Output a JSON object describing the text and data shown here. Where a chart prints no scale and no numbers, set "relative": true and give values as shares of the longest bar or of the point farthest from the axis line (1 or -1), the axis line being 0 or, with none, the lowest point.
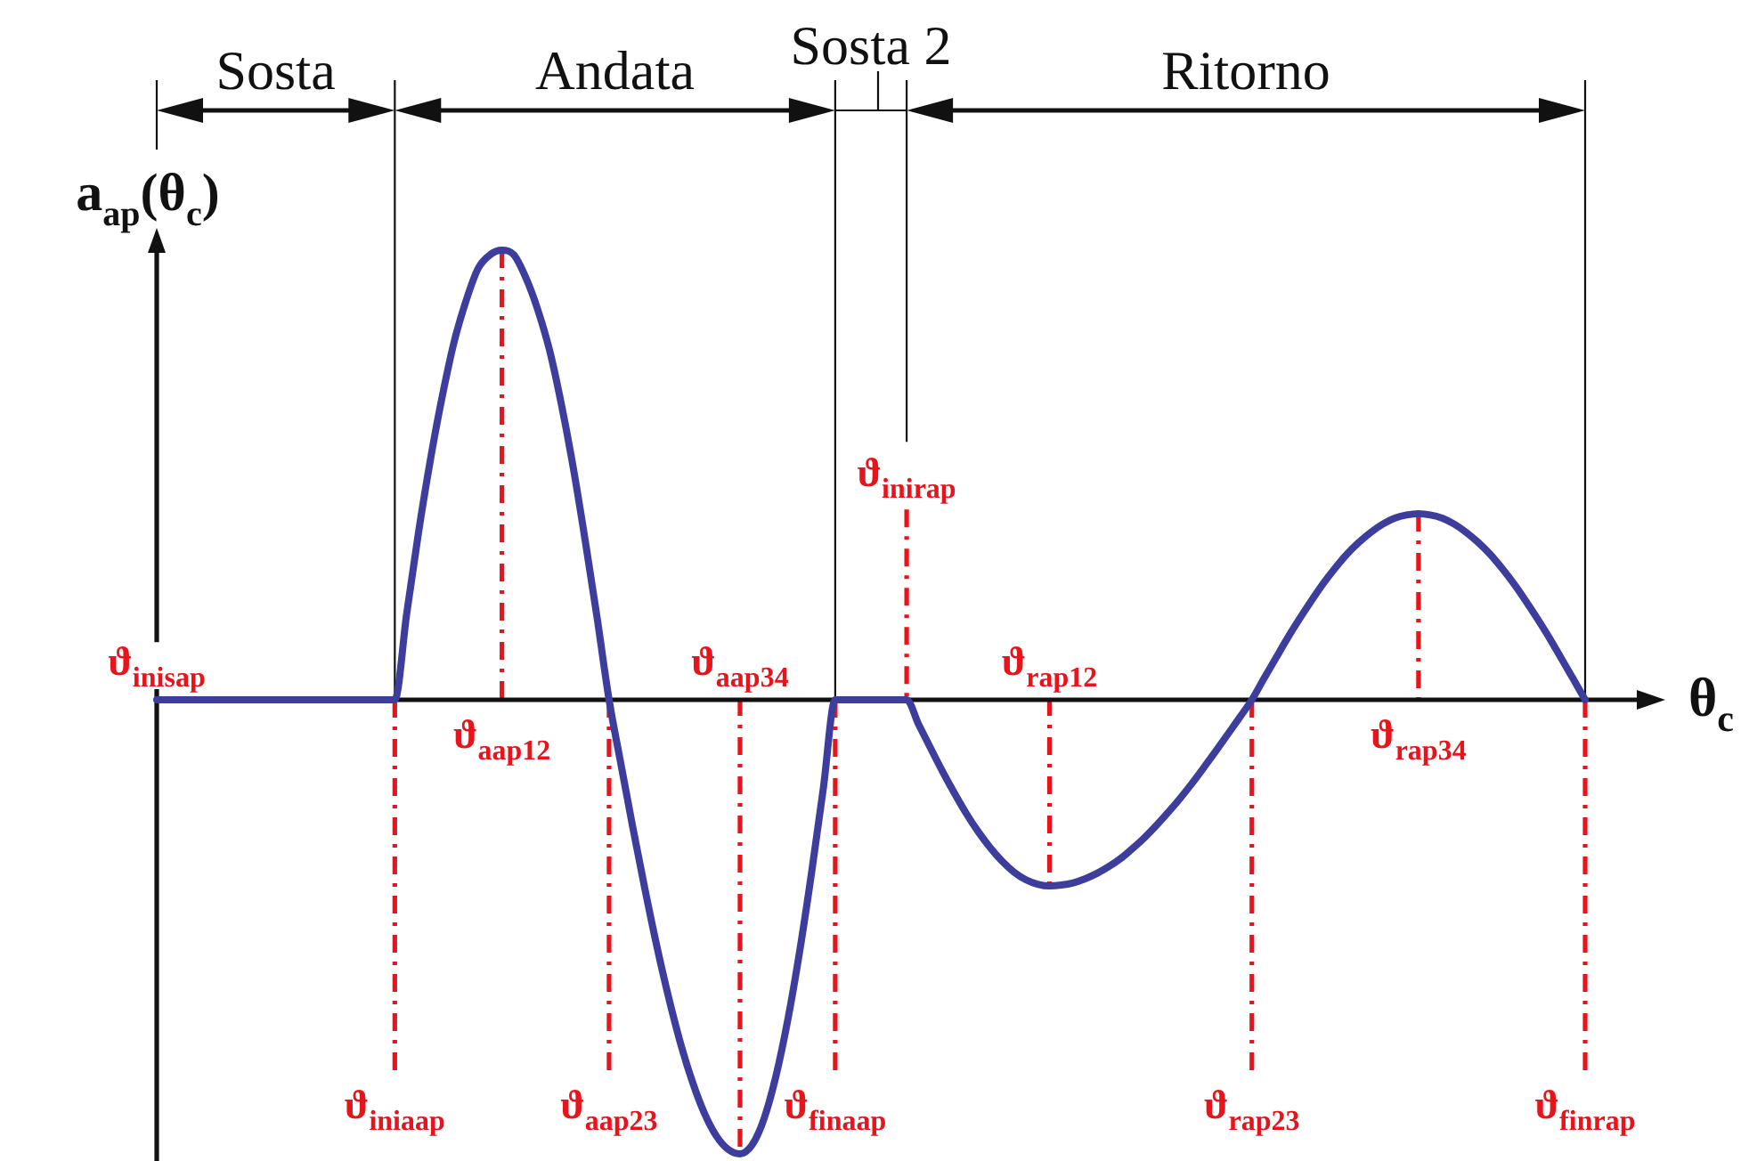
{
  "chart_data": {
    "type": "line",
    "relative": true,
    "xlabel": "θ$_{c}$",
    "ylabel": "a$_{ap}$(θ$_{c}$)",
    "annotations": [
      "Sosta",
      "Andata",
      "Sosta 2",
      "Ritorno"
    ],
    "categories": [
      "ϑ$_{inisap}$",
      null,
      null,
      null,
      null,
      null,
      null,
      null,
      null,
      null,
      null,
      null,
      null,
      null,
      null,
      null,
      null,
      null,
      null,
      null,
      "ϑ$_{iniaap}$",
      null,
      null,
      null,
      null,
      null,
      null,
      null,
      null,
      "ϑ$_{aap12}$",
      null,
      null,
      null,
      null,
      null,
      null,
      null,
      null,
      "ϑ$_{aap23}$",
      null,
      null,
      null,
      null,
      null,
      null,
      null,
      null,
      null,
      null,
      "ϑ$_{aap34}$",
      null,
      null,
      null,
      null,
      null,
      null,
      null,
      "ϑ$_{finaap}$",
      null,
      null,
      null,
      null,
      null,
      "ϑ$_{inirap}$",
      null,
      null,
      null,
      null,
      null,
      null,
      null,
      null,
      null,
      null,
      null,
      "ϑ$_{rap12}$",
      null,
      null,
      null,
      null,
      null,
      null,
      null,
      null,
      null,
      null,
      null,
      null,
      null,
      null,
      null,
      null,
      "ϑ$_{rap23}$",
      null,
      null,
      null,
      null,
      null,
      null,
      null,
      null,
      null,
      null,
      null,
      null,
      null,
      "ϑ$_{rap34}$",
      null,
      null,
      null,
      null,
      null,
      null,
      null,
      null,
      null,
      null,
      null,
      null,
      null,
      "ϑ$_{finrap}$"
    ],
    "series": [
      {
        "color": "#3d3d9e",
        "values": [
          0,
          0,
          0,
          0,
          0,
          0,
          0,
          0,
          0,
          0,
          0,
          0,
          0,
          0,
          0,
          0,
          0,
          0,
          0,
          0,
          0,
          0.19,
          0.37,
          0.53,
          0.67,
          0.79,
          0.88,
          0.95,
          0.98,
          0.99,
          0.98,
          0.93,
          0.86,
          0.77,
          0.65,
          0.51,
          0.35,
          0.18,
          0,
          -0.142,
          -0.282,
          -0.415,
          -0.541,
          -0.655,
          -0.756,
          -0.841,
          -0.91,
          -0.96,
          -0.99,
          -1,
          -0.981,
          -0.924,
          -0.831,
          -0.707,
          -0.556,
          -0.383,
          -0.195,
          0,
          0,
          0,
          0,
          0,
          0,
          0,
          -0.054,
          -0.106,
          -0.157,
          -0.205,
          -0.25,
          -0.29,
          -0.325,
          -0.355,
          -0.379,
          -0.396,
          -0.406,
          -0.41,
          -0.408,
          -0.403,
          -0.394,
          -0.382,
          -0.367,
          -0.349,
          -0.327,
          -0.303,
          -0.276,
          -0.247,
          -0.216,
          -0.183,
          -0.148,
          -0.112,
          -0.075,
          -0.038,
          0,
          0.046,
          0.091,
          0.136,
          0.178,
          0.218,
          0.256,
          0.29,
          0.321,
          0.347,
          0.369,
          0.387,
          0.4,
          0.407,
          0.41,
          0.407,
          0.4,
          0.387,
          0.369,
          0.347,
          0.321,
          0.29,
          0.256,
          0.218,
          0.178,
          0.136,
          0.091,
          0.046,
          0
        ]
      }
    ],
    "marker": "none",
    "line_style": "solid",
    "ref_lines": [
      {
        "axis": "x",
        "value": "ϑ$_{iniaap}$",
        "color": "#e8141b",
        "line_style": "dashed"
      },
      {
        "axis": "x",
        "value": "ϑ$_{aap12}$",
        "color": "#e8141b",
        "line_style": "dashed"
      },
      {
        "axis": "x",
        "value": "ϑ$_{aap23}$",
        "color": "#e8141b",
        "line_style": "dashed"
      },
      {
        "axis": "x",
        "value": "ϑ$_{aap34}$",
        "color": "#e8141b",
        "line_style": "dashed"
      },
      {
        "axis": "x",
        "value": "ϑ$_{finaap}$",
        "color": "#e8141b",
        "line_style": "dashed"
      },
      {
        "axis": "x",
        "value": "ϑ$_{inirap}$",
        "color": "#e8141b",
        "line_style": "dashed"
      },
      {
        "axis": "x",
        "value": "ϑ$_{rap12}$",
        "color": "#e8141b",
        "line_style": "dashed"
      },
      {
        "axis": "x",
        "value": "ϑ$_{rap23}$",
        "color": "#e8141b",
        "line_style": "dashed"
      },
      {
        "axis": "x",
        "value": "ϑ$_{rap34}$",
        "color": "#e8141b",
        "line_style": "dashed"
      },
      {
        "axis": "x",
        "value": "ϑ$_{finrap}$",
        "color": "#e8141b",
        "line_style": "dashed"
      }
    ]
  }
}
